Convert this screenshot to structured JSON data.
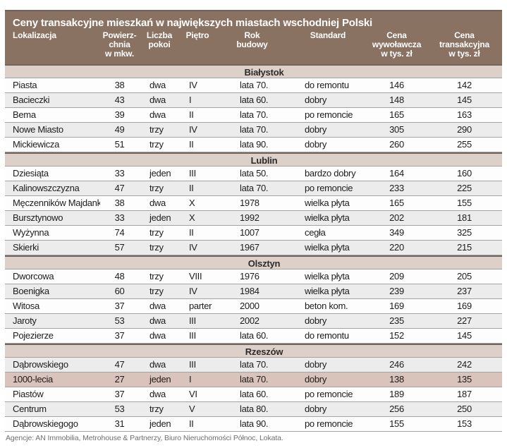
{
  "title": "Ceny transakcyjne mieszkań w największych miastach wschodniej Polski",
  "footer": "Agencje: AN Immobilia, Metrohouse & Partnerzy,  Biuro Nieruchomości Północ, Lokata.",
  "colors": {
    "header_bg": "#8a7262",
    "header_text": "#ffffff",
    "band_bg": "#ddd0c8",
    "row_gray": "#ececec",
    "row_white": "#fdfdfd",
    "row_pink": "#d9c3ba",
    "separator": "#a3a3a3",
    "text": "#1c1c1c",
    "footer_text": "#6f6f6f"
  },
  "chart_data": {
    "type": "table",
    "title": "Ceny transakcyjne mieszkań w największych miastach wschodniej Polski",
    "columns": [
      "Lokalizacja",
      "Powierzchnia w mkw.",
      "Liczba pokoi",
      "Piętro",
      "Rok budowy",
      "Standard",
      "Cena wywoławcza w tys. zł",
      "Cena transakcyjna w tys. zł"
    ],
    "column_labels": [
      "Lokalizacja",
      "Powierz-\nchnia\nw mkw.",
      "Liczba\npokoi",
      "Piętro",
      "Rok\nbudowy",
      "Standard",
      "Cena\nwywoławcza\nw tys. zł",
      "Cena\ntransakcyjna\nw tys. zł"
    ],
    "sections": [
      {
        "city": "Białystok",
        "rows": [
          {
            "cells": [
              "Piasta",
              "38",
              "dwa",
              "IV",
              "lata 70.",
              "do remontu",
              "146",
              "142"
            ],
            "bg": "white"
          },
          {
            "cells": [
              "Bacieczki",
              "43",
              "dwa",
              "I",
              "lata 60.",
              "dobry",
              "148",
              "145"
            ],
            "bg": "gray"
          },
          {
            "cells": [
              "Bema",
              "39",
              "dwa",
              "II",
              "lata 70.",
              "po remoncie",
              "165",
              "163"
            ],
            "bg": "white"
          },
          {
            "cells": [
              "Nowe Miasto",
              "49",
              "trzy",
              "IV",
              "lata 70.",
              "dobry",
              "305",
              "290"
            ],
            "bg": "gray"
          },
          {
            "cells": [
              "Mickiewicza",
              "51",
              "trzy",
              "II",
              "lata 90.",
              "dobry",
              "260",
              "255"
            ],
            "bg": "white"
          }
        ]
      },
      {
        "city": "Lublin",
        "rows": [
          {
            "cells": [
              "Dziesiąta",
              "33",
              "jeden",
              "III",
              "lata 50.",
              "bardzo dobry",
              "164",
              "160"
            ],
            "bg": "white"
          },
          {
            "cells": [
              "Kalinowszczyzna",
              "47",
              "trzy",
              "II",
              "lata 70.",
              "po remoncie",
              "233",
              "225"
            ],
            "bg": "gray"
          },
          {
            "cells": [
              "Męczenników Majdanka",
              "38",
              "dwa",
              "X",
              "1978",
              "wielka płyta",
              "165",
              "155"
            ],
            "bg": "white"
          },
          {
            "cells": [
              "Bursztynowo",
              "33",
              "jeden",
              "X",
              "1992",
              "wielka płyta",
              "202",
              "181"
            ],
            "bg": "gray"
          },
          {
            "cells": [
              "Wyżynna",
              "74",
              "trzy",
              "II",
              "1007",
              "cegła",
              "349",
              "325"
            ],
            "bg": "white"
          },
          {
            "cells": [
              "Skierki",
              "57",
              "trzy",
              "IV",
              "1967",
              "wielka płyta",
              "220",
              "215"
            ],
            "bg": "gray"
          }
        ]
      },
      {
        "city": "Olsztyn",
        "rows": [
          {
            "cells": [
              "Dworcowa",
              "48",
              "trzy",
              "VIII",
              "1976",
              "wielka płyta",
              "209",
              "205"
            ],
            "bg": "white"
          },
          {
            "cells": [
              "Boenigka",
              "60",
              "trzy",
              "IV",
              "1984",
              "wielka płyta",
              "239",
              "237"
            ],
            "bg": "gray"
          },
          {
            "cells": [
              "Witosa",
              "37",
              "dwa",
              "parter",
              "2000",
              "beton kom.",
              "169",
              "169"
            ],
            "bg": "white"
          },
          {
            "cells": [
              "Jaroty",
              "53",
              "dwa",
              "III",
              "2002",
              "dobry",
              "235",
              "227"
            ],
            "bg": "gray"
          },
          {
            "cells": [
              "Pojezierze",
              "37",
              "dwa",
              "III",
              "lata 60.",
              "do remontu",
              "152",
              "145"
            ],
            "bg": "white"
          }
        ]
      },
      {
        "city": "Rzeszów",
        "rows": [
          {
            "cells": [
              "Dąbrowskiego",
              "47",
              "dwa",
              "III",
              "lata 70.",
              "dobry",
              "246",
              "242"
            ],
            "bg": "gray"
          },
          {
            "cells": [
              "1000-lecia",
              "27",
              "jeden",
              "I",
              "lata 70.",
              "dobry",
              "138",
              "135"
            ],
            "bg": "pink"
          },
          {
            "cells": [
              "Piastów",
              "37",
              "dwa",
              "VI",
              "lata 60.",
              "po remoncie",
              "189",
              "187"
            ],
            "bg": "white"
          },
          {
            "cells": [
              "Centrum",
              "53",
              "trzy",
              "V",
              "lata 80.",
              "dobry",
              "256",
              "250"
            ],
            "bg": "gray"
          },
          {
            "cells": [
              "Dąbrowskiegogo",
              "31",
              "jeden",
              "II",
              "lata 90.",
              "po remoncie",
              "155",
              "153"
            ],
            "bg": "white"
          }
        ]
      }
    ]
  }
}
